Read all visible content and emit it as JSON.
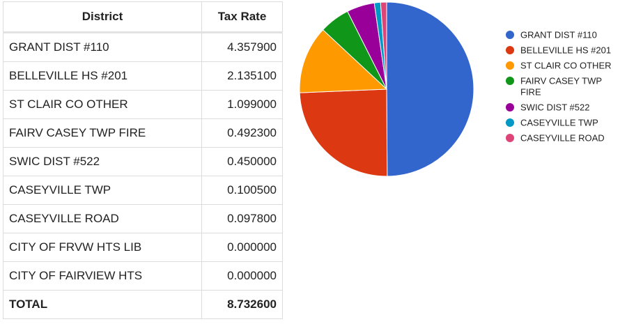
{
  "table": {
    "headers": {
      "district": "District",
      "tax_rate": "Tax Rate"
    },
    "rows": [
      {
        "district": "GRANT DIST #110",
        "tax_rate": "4.357900"
      },
      {
        "district": "BELLEVILLE HS #201",
        "tax_rate": "2.135100"
      },
      {
        "district": "ST CLAIR CO OTHER",
        "tax_rate": "1.099000"
      },
      {
        "district": "FAIRV CASEY TWP FIRE",
        "tax_rate": "0.492300"
      },
      {
        "district": "SWIC DIST #522",
        "tax_rate": "0.450000"
      },
      {
        "district": "CASEYVILLE TWP",
        "tax_rate": "0.100500"
      },
      {
        "district": "CASEYVILLE ROAD",
        "tax_rate": "0.097800"
      },
      {
        "district": "CITY OF FRVW HTS LIB",
        "tax_rate": "0.000000"
      },
      {
        "district": "CITY OF FAIRVIEW HTS",
        "tax_rate": "0.000000"
      }
    ],
    "total": {
      "label": "TOTAL",
      "value": "8.732600"
    }
  },
  "chart_data": {
    "type": "pie",
    "legend_position": "right",
    "slices": [
      {
        "label": "GRANT DIST #110",
        "value": 4.3579,
        "color": "#3366cc"
      },
      {
        "label": "BELLEVILLE HS #201",
        "value": 2.1351,
        "color": "#dc3912"
      },
      {
        "label": "ST CLAIR CO OTHER",
        "value": 1.099,
        "color": "#ff9900"
      },
      {
        "label": "FAIRV CASEY TWP FIRE",
        "value": 0.4923,
        "color": "#109618"
      },
      {
        "label": "SWIC DIST #522",
        "value": 0.45,
        "color": "#990099"
      },
      {
        "label": "CASEYVILLE TWP",
        "value": 0.1005,
        "color": "#0099c6"
      },
      {
        "label": "CASEYVILLE ROAD",
        "value": 0.0978,
        "color": "#dd4477"
      }
    ]
  }
}
